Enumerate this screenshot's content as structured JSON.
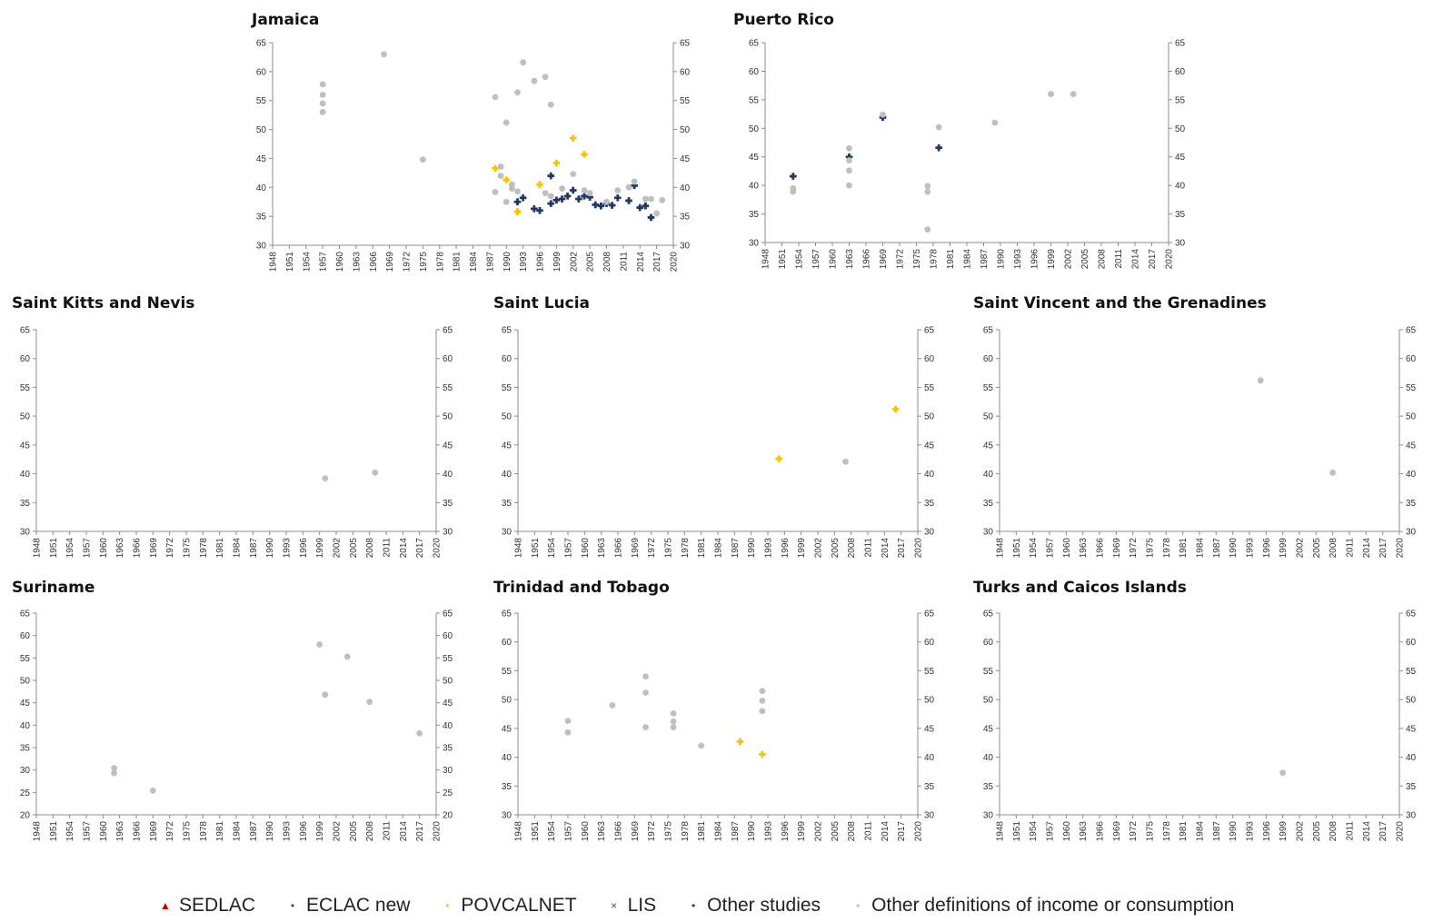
{
  "legend": [
    {
      "key": "sedlac",
      "label": "SEDLAC",
      "color": "#c00000",
      "symbol": "▲"
    },
    {
      "key": "eclac",
      "label": "ECLAC new",
      "color": "#385723",
      "symbol": "•"
    },
    {
      "key": "povcal",
      "label": "POVCALNET",
      "color": "#ffc000",
      "symbol": "•"
    },
    {
      "key": "lis",
      "label": "LIS",
      "color": "#7030a0",
      "symbol": "×"
    },
    {
      "key": "other",
      "label": "Other studies",
      "color": "#1f3864",
      "symbol": "•"
    },
    {
      "key": "otherdef",
      "label": "Other definitions of income or consumption",
      "color": "#bfbfbf",
      "symbol": "•"
    }
  ],
  "chart_data": [
    {
      "type": "scatter",
      "title": "Jamaica",
      "ylim": [
        30,
        65
      ],
      "yticks": [
        30,
        35,
        40,
        45,
        50,
        55,
        60,
        65
      ],
      "xlim": [
        1948,
        2020
      ],
      "series": [
        {
          "name": "Other studies",
          "key": "other",
          "points": [
            [
              1998,
              42
            ],
            [
              1992,
              37.5
            ],
            [
              1993,
              38.2
            ],
            [
              1995,
              36.3
            ],
            [
              1996,
              36
            ],
            [
              1998,
              37.2
            ],
            [
              1999,
              37.8
            ],
            [
              2000,
              38
            ],
            [
              2001,
              38.5
            ],
            [
              2002,
              39.5
            ],
            [
              2003,
              38
            ],
            [
              2004,
              38.5
            ],
            [
              2005,
              38.3
            ],
            [
              2006,
              37
            ],
            [
              2007,
              36.8
            ],
            [
              2008,
              37.2
            ],
            [
              2009,
              36.9
            ],
            [
              2010,
              38.2
            ],
            [
              2012,
              37.7
            ],
            [
              2013,
              40.3
            ],
            [
              2014,
              36.5
            ],
            [
              2015,
              36.8
            ],
            [
              2016,
              34.8
            ]
          ]
        },
        {
          "name": "POVCALNET",
          "key": "povcal",
          "points": [
            [
              1988,
              43.3
            ],
            [
              1990,
              41.3
            ],
            [
              1992,
              35.8
            ],
            [
              1996,
              40.5
            ],
            [
              1999,
              44.2
            ],
            [
              2002,
              48.5
            ],
            [
              2004,
              45.7
            ]
          ]
        },
        {
          "name": "Other definitions of income or consumption",
          "key": "otherdef",
          "points": [
            [
              1957,
              57.8
            ],
            [
              1957,
              56
            ],
            [
              1957,
              54.5
            ],
            [
              1957,
              53
            ],
            [
              1968,
              63
            ],
            [
              1975,
              44.8
            ],
            [
              1988,
              55.6
            ],
            [
              1988,
              39.2
            ],
            [
              1989,
              43.6
            ],
            [
              1989,
              42
            ],
            [
              1990,
              51.2
            ],
            [
              1990,
              37.5
            ],
            [
              1991,
              40.5
            ],
            [
              1991,
              39.8
            ],
            [
              1992,
              56.4
            ],
            [
              1992,
              39.3
            ],
            [
              1993,
              61.6
            ],
            [
              1995,
              58.4
            ],
            [
              1997,
              59.1
            ],
            [
              1997,
              39
            ],
            [
              1998,
              54.3
            ],
            [
              1998,
              38.5
            ],
            [
              2000,
              39.8
            ],
            [
              2002,
              42.3
            ],
            [
              2004,
              39.5
            ],
            [
              2005,
              39
            ],
            [
              2008,
              37.5
            ],
            [
              2010,
              39.5
            ],
            [
              2012,
              40
            ],
            [
              2013,
              41
            ],
            [
              2015,
              38
            ],
            [
              2016,
              38
            ],
            [
              2017,
              35.5
            ],
            [
              2018,
              37.8
            ]
          ]
        }
      ]
    },
    {
      "type": "scatter",
      "title": "Puerto Rico",
      "ylim": [
        30,
        65
      ],
      "yticks": [
        30,
        35,
        40,
        45,
        50,
        55,
        60,
        65
      ],
      "xlim": [
        1948,
        2020
      ],
      "series": [
        {
          "name": "Other studies",
          "key": "other",
          "points": [
            [
              1953,
              41.6
            ],
            [
              1963,
              45
            ],
            [
              1969,
              51.9
            ],
            [
              1979,
              46.6
            ]
          ]
        },
        {
          "name": "Other definitions of income or consumption",
          "key": "otherdef",
          "points": [
            [
              1953,
              39.5
            ],
            [
              1953,
              38.9
            ],
            [
              1963,
              46.5
            ],
            [
              1963,
              44.4
            ],
            [
              1963,
              42.6
            ],
            [
              1963,
              40
            ],
            [
              1969,
              52.4
            ],
            [
              1977,
              39.9
            ],
            [
              1977,
              38.9
            ],
            [
              1977,
              32.3
            ],
            [
              1979,
              50.2
            ],
            [
              1989,
              51
            ],
            [
              1999,
              56
            ],
            [
              2003,
              56
            ]
          ]
        }
      ]
    },
    {
      "type": "scatter",
      "title": "Saint Kitts and Nevis",
      "ylim": [
        30,
        65
      ],
      "yticks": [
        30,
        35,
        40,
        45,
        50,
        55,
        60,
        65
      ],
      "xlim": [
        1948,
        2020
      ],
      "series": [
        {
          "name": "Other definitions of income or consumption",
          "key": "otherdef",
          "points": [
            [
              2000,
              39.2
            ],
            [
              2009,
              40.2
            ]
          ]
        }
      ]
    },
    {
      "type": "scatter",
      "title": "Saint Lucia",
      "ylim": [
        30,
        65
      ],
      "yticks": [
        30,
        35,
        40,
        45,
        50,
        55,
        60,
        65
      ],
      "xlim": [
        1948,
        2020
      ],
      "series": [
        {
          "name": "POVCALNET",
          "key": "povcal",
          "points": [
            [
              1995,
              42.6
            ],
            [
              2016,
              51.2
            ]
          ]
        },
        {
          "name": "Other definitions of income or consumption",
          "key": "otherdef",
          "points": [
            [
              2007,
              42.1
            ]
          ]
        }
      ]
    },
    {
      "type": "scatter",
      "title": "Saint Vincent and the Grenadines",
      "ylim": [
        30,
        65
      ],
      "yticks": [
        30,
        35,
        40,
        45,
        50,
        55,
        60,
        65
      ],
      "xlim": [
        1948,
        2020
      ],
      "series": [
        {
          "name": "Other definitions of income or consumption",
          "key": "otherdef",
          "points": [
            [
              1995,
              56.2
            ],
            [
              2008,
              40.2
            ]
          ]
        }
      ]
    },
    {
      "type": "scatter",
      "title": "Suriname",
      "ylim": [
        20,
        65
      ],
      "yticks": [
        20,
        25,
        30,
        35,
        40,
        45,
        50,
        55,
        60,
        65
      ],
      "xlim": [
        1948,
        2020
      ],
      "series": [
        {
          "name": "Other definitions of income or consumption",
          "key": "otherdef",
          "points": [
            [
              1962,
              30.4
            ],
            [
              1962,
              29.3
            ],
            [
              1969,
              25.4
            ],
            [
              1999,
              58
            ],
            [
              2000,
              46.8
            ],
            [
              2004,
              55.3
            ],
            [
              2008,
              45.2
            ],
            [
              2017,
              38.2
            ]
          ]
        }
      ]
    },
    {
      "type": "scatter",
      "title": "Trinidad and Tobago",
      "ylim": [
        30,
        65
      ],
      "yticks": [
        30,
        35,
        40,
        45,
        50,
        55,
        60,
        65
      ],
      "xlim": [
        1948,
        2020
      ],
      "series": [
        {
          "name": "POVCALNET",
          "key": "povcal",
          "points": [
            [
              1988,
              42.7
            ],
            [
              1992,
              40.5
            ]
          ]
        },
        {
          "name": "Other definitions of income or consumption",
          "key": "otherdef",
          "points": [
            [
              1957,
              46.3
            ],
            [
              1957,
              44.3
            ],
            [
              1965,
              49
            ],
            [
              1971,
              54
            ],
            [
              1971,
              51.2
            ],
            [
              1971,
              45.2
            ],
            [
              1976,
              47.6
            ],
            [
              1976,
              46.2
            ],
            [
              1976,
              45.2
            ],
            [
              1981,
              42
            ],
            [
              1992,
              51.5
            ],
            [
              1992,
              49.8
            ],
            [
              1992,
              48
            ]
          ]
        }
      ]
    },
    {
      "type": "scatter",
      "title": "Turks and Caicos Islands",
      "ylim": [
        30,
        65
      ],
      "yticks": [
        30,
        35,
        40,
        45,
        50,
        55,
        60,
        65
      ],
      "xlim": [
        1948,
        2020
      ],
      "series": [
        {
          "name": "Other definitions of income or consumption",
          "key": "otherdef",
          "points": [
            [
              1999,
              37.3
            ]
          ]
        }
      ]
    }
  ]
}
